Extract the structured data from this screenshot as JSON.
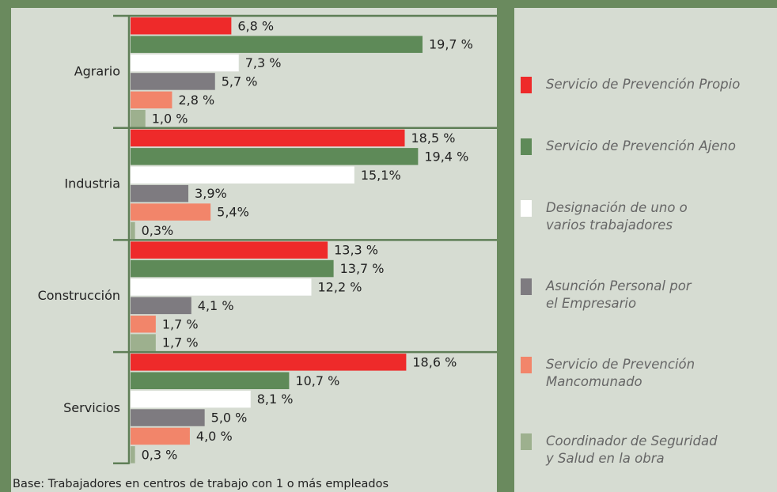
{
  "chart_data": {
    "type": "hbar",
    "categories": [
      "Agrario",
      "Industria",
      "Construcción",
      "Servicios"
    ],
    "series": [
      {
        "name": "Servicio de Prevención Propio",
        "color": "#ee2a2a",
        "values": [
          6.8,
          18.5,
          13.3,
          18.6
        ],
        "value_labels": [
          "6,8 %",
          "18,5 %",
          "13,3 %",
          "18,6 %"
        ]
      },
      {
        "name": "Servicio de Prevención Ajeno",
        "color": "#5e8a58",
        "values": [
          19.7,
          19.4,
          13.7,
          10.7
        ],
        "value_labels": [
          "19,7 %",
          "19,4 %",
          "13,7 %",
          "10,7 %"
        ]
      },
      {
        "name": "Designación de uno o\nvarios trabajadores",
        "color": "#ffffff",
        "values": [
          7.3,
          15.1,
          12.2,
          8.1
        ],
        "value_labels": [
          "7,3 %",
          "15,1%",
          "12,2 %",
          "8,1 %"
        ]
      },
      {
        "name": "Asunción Personal por\nel Empresario",
        "color": "#7e7b80",
        "values": [
          5.7,
          3.9,
          4.1,
          5.0
        ],
        "value_labels": [
          "5,7 %",
          "3,9%",
          "4,1 %",
          "5,0 %"
        ]
      },
      {
        "name": "Servicio de Prevención\nMancomunado",
        "color": "#f2856a",
        "values": [
          2.8,
          5.4,
          1.7,
          4.0
        ],
        "value_labels": [
          "2,8 %",
          "5,4%",
          "1,7 %",
          "4,0 %"
        ]
      },
      {
        "name": "Coordinador de Seguridad\ny Salud en la obra",
        "color": "#9db08e",
        "values": [
          1.0,
          0.3,
          1.7,
          0.3
        ],
        "value_labels": [
          "1,0 %",
          "0,3%",
          "1,7 %",
          "0,3 %"
        ]
      }
    ],
    "note": "Base: Trabajadores en centros de trabajo con 1 o más empleados"
  }
}
